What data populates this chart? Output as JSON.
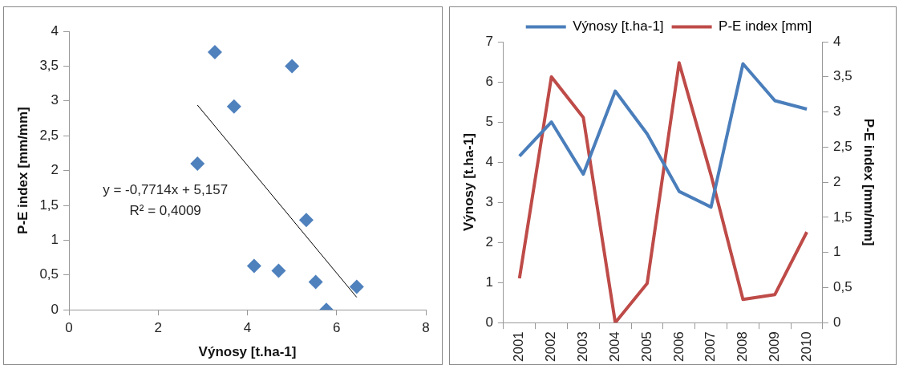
{
  "chart_data": [
    {
      "type": "scatter",
      "xlabel": "Výnosy [t.ha-1]",
      "ylabel": "P-E index [mm/mm]",
      "xlim": [
        0,
        8
      ],
      "xticks": [
        0,
        2,
        4,
        6,
        8
      ],
      "ylim": [
        0,
        4
      ],
      "yticks": [
        0,
        {
          "value": 0.5,
          "label": "0,5"
        },
        1,
        {
          "value": 1.5,
          "label": "1,5"
        },
        2,
        {
          "value": 2.5,
          "label": "2,5"
        },
        3,
        {
          "value": 3.5,
          "label": "3,5"
        },
        4
      ],
      "grid": false,
      "legend": false,
      "series": [
        {
          "type": "scatter",
          "marker": "diamond",
          "color": "#4f81bd",
          "x": [
            4.15,
            5.0,
            3.7,
            5.77,
            4.7,
            3.27,
            2.88,
            6.45,
            5.53,
            5.32
          ],
          "values": [
            0.63,
            3.5,
            2.92,
            0,
            0.56,
            3.7,
            2.1,
            0.33,
            0.4,
            1.29
          ]
        },
        {
          "type": "line",
          "marker": "none",
          "color": "#000000",
          "x": [
            2.88,
            6.45
          ],
          "values": [
            2.94,
            0.18
          ]
        }
      ],
      "annotations": [
        "y = -0,7714x + 5,157",
        "R² = 0,4009"
      ]
    },
    {
      "type": "line",
      "ylabel": "Výnosy [t.ha-1]",
      "y2label": "P-E index [mm/mm]",
      "categories": [
        "2001",
        "2002",
        "2003",
        "2004",
        "2005",
        "2006",
        "2007",
        "2008",
        "2009",
        "2010"
      ],
      "ylim": [
        0,
        7
      ],
      "yticks": [
        0,
        1,
        2,
        3,
        4,
        5,
        6,
        7
      ],
      "y2lim": [
        0,
        4
      ],
      "y2ticks": [
        0,
        {
          "value": 0.5,
          "label": "0,5"
        },
        1,
        {
          "value": 1.5,
          "label": "1,5"
        },
        2,
        {
          "value": 2.5,
          "label": "2,5"
        },
        3,
        {
          "value": 3.5,
          "label": "3,5"
        },
        4
      ],
      "grid": false,
      "legend": "top",
      "marker": "none",
      "series": [
        {
          "name": "Výnosy [t.ha-1]",
          "color": "#4a7ebb",
          "values": [
            4.15,
            5.0,
            3.7,
            5.77,
            4.7,
            3.27,
            2.88,
            6.45,
            5.53,
            5.32
          ]
        },
        {
          "name": "P-E index [mm]",
          "color": "#be4b48",
          "axis": "y2",
          "values": [
            0.63,
            3.5,
            2.92,
            0,
            0.56,
            3.7,
            2.1,
            0.33,
            0.4,
            1.29
          ]
        }
      ]
    }
  ]
}
